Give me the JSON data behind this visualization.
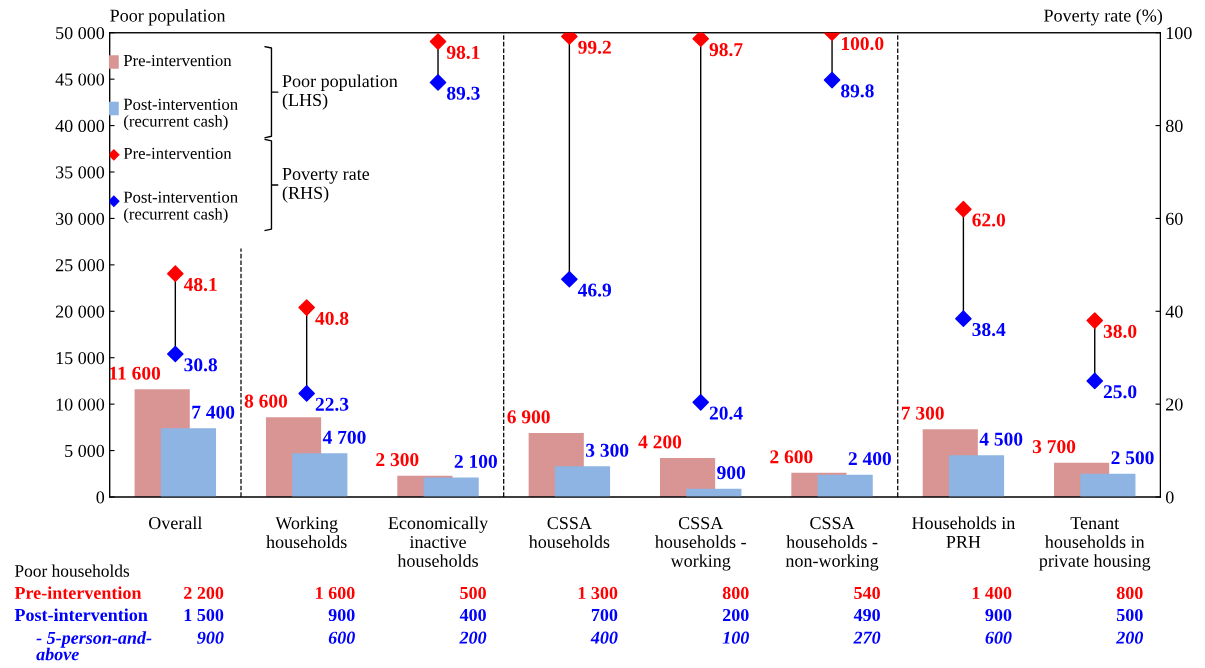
{
  "chart_data": {
    "type": "bar",
    "categories": [
      "Overall",
      "Working\nhouseholds",
      "Economically\ninactive\nhouseholds",
      "CSSA\nhouseholds",
      "CSSA\nhouseholds -\nworking",
      "CSSA\nhouseholds -\nnon-working",
      "Households in\nPRH",
      "Tenant\nhouseholds in\nprivate housing"
    ],
    "series": [
      {
        "name": "Pre-intervention",
        "color": "#d99594",
        "values": [
          11600,
          8600,
          2300,
          6900,
          4200,
          2600,
          7300,
          3700
        ],
        "value_labels": [
          "11 600",
          "8 600",
          "2 300",
          "6 900",
          "4 200",
          "2 600",
          "7 300",
          "3 700"
        ]
      },
      {
        "name": "Post-intervention\n(recurrent cash)",
        "color": "#8db4e2",
        "values": [
          7400,
          4700,
          2100,
          3300,
          900,
          2400,
          4500,
          2500
        ],
        "value_labels": [
          "7 400",
          "4 700",
          "2 100",
          "3 300",
          "900",
          "2 400",
          "4 500",
          "2 500"
        ]
      },
      {
        "name": "Pre-intervention",
        "type": "scatter",
        "axis": "y2",
        "marker": "diamond",
        "color": "#ff0000",
        "values": [
          48.1,
          40.8,
          98.1,
          99.2,
          98.7,
          100.0,
          62.0,
          38.0
        ],
        "value_labels": [
          "48.1",
          "40.8",
          "98.1",
          "99.2",
          "98.7",
          "100.0",
          "62.0",
          "38.0"
        ]
      },
      {
        "name": "Post-intervention\n(recurrent cash)",
        "type": "scatter",
        "axis": "y2",
        "marker": "diamond",
        "color": "#0000ff",
        "values": [
          30.8,
          22.3,
          89.3,
          46.9,
          20.4,
          89.8,
          38.4,
          25.0
        ],
        "value_labels": [
          "30.8",
          "22.3",
          "89.3",
          "46.9",
          "20.4",
          "89.8",
          "38.4",
          "25.0"
        ]
      }
    ],
    "ylabel": "Poor population",
    "y2label": "Poverty rate (%)",
    "ylim": [
      0,
      50000
    ],
    "yticks": [
      0,
      {
        "value": 5000,
        "label": "5 000"
      },
      {
        "value": 10000,
        "label": "10 000"
      },
      {
        "value": 15000,
        "label": "15 000"
      },
      {
        "value": 20000,
        "label": "20 000"
      },
      {
        "value": 25000,
        "label": "25 000"
      },
      {
        "value": 30000,
        "label": "30 000"
      },
      {
        "value": 35000,
        "label": "35 000"
      },
      {
        "value": 40000,
        "label": "40 000"
      },
      {
        "value": 45000,
        "label": "45 000"
      },
      {
        "value": 50000,
        "label": "50 000"
      }
    ],
    "y2lim": [
      0,
      100
    ],
    "y2ticks": [
      0,
      20,
      40,
      60,
      80,
      100
    ],
    "legend": "top left",
    "grid": false,
    "annotations": [
      "Poor population\n(LHS)",
      "Poverty rate\n(RHS)",
      "Poor households",
      "Pre-intervention",
      "2 200",
      "1 600",
      "500",
      "1 300",
      "800",
      "540",
      "1 400",
      "800",
      "Post-intervention",
      "1 500",
      "900",
      "400",
      "700",
      "200",
      "490",
      "900",
      "500",
      "- 5-person-and-\nabove",
      "900",
      "600",
      "200",
      "400",
      "100",
      "270",
      "600",
      "200"
    ]
  }
}
